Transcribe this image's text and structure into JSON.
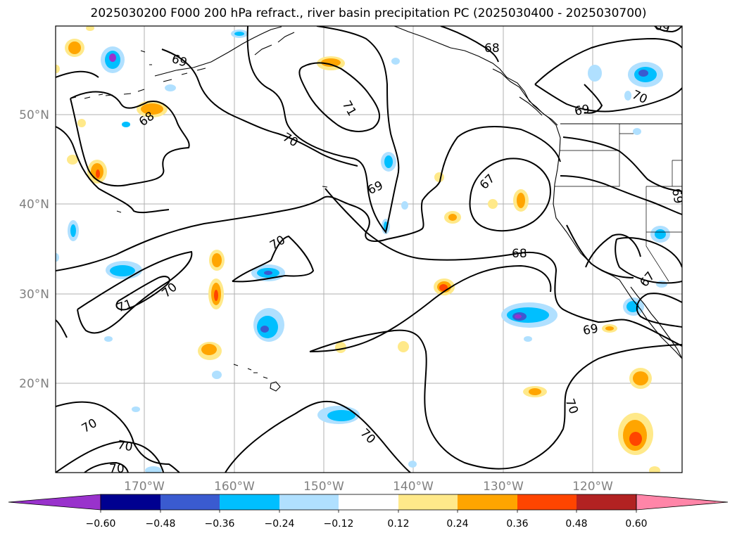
{
  "title": "2025030200 F000 200 hPa refract., river basin precipitation PC (2025030400 - 2025030700)",
  "map": {
    "lon_ticks": [
      "170°W",
      "160°W",
      "150°W",
      "140°W",
      "130°W",
      "120°W"
    ],
    "lat_ticks": [
      "50°N",
      "40°N",
      "30°N",
      "20°N"
    ],
    "contour_labels": [
      "69",
      "68",
      "71",
      "70",
      "69",
      "67",
      "68",
      "69",
      "70",
      "71",
      "70",
      "70",
      "70",
      "70",
      "70",
      "68",
      "69",
      "70",
      "69",
      "67",
      "69",
      "70",
      "70"
    ],
    "colors": {
      "frame": "#000000",
      "grid": "#b0b0b0",
      "tick_label": "#808080"
    }
  },
  "colorbar": {
    "tick_labels": [
      "−0.60",
      "−0.48",
      "−0.36",
      "−0.24",
      "−0.12",
      "0.12",
      "0.24",
      "0.36",
      "0.48",
      "0.60"
    ],
    "colors": [
      "#9932cc",
      "#000090",
      "#3a5bd0",
      "#00bfff",
      "#b0e0ff",
      "#ffffff",
      "#ffe98a",
      "#ffa500",
      "#ff4500",
      "#b22222",
      "#ff85a8"
    ]
  }
}
